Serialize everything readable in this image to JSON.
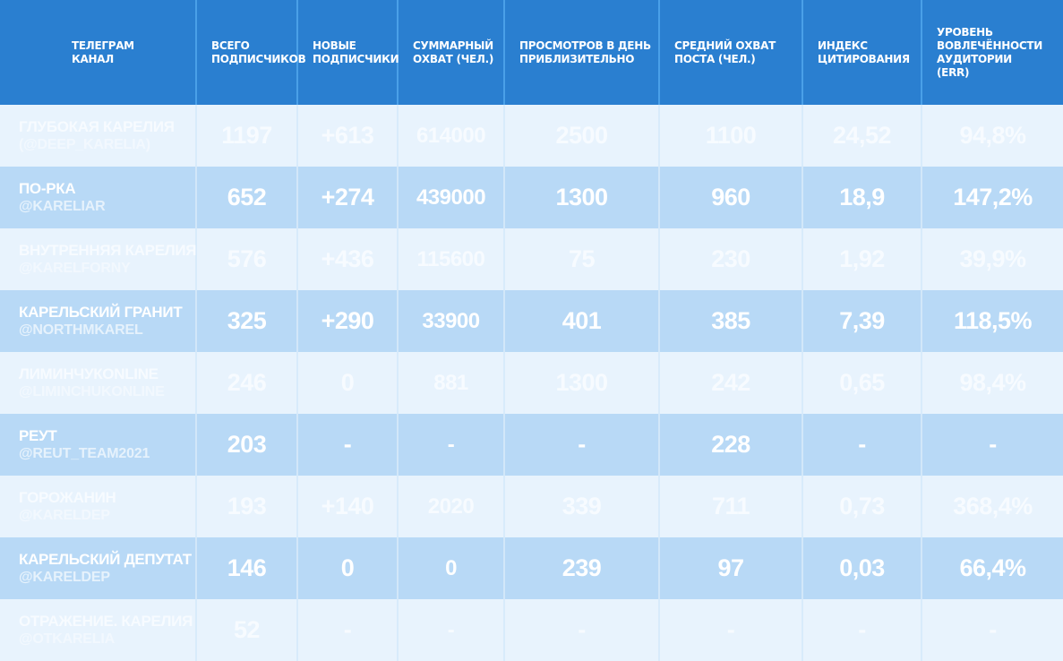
{
  "header": {
    "columns": [
      "Телеграм\nканал",
      "Всего\nподписчиков",
      "Новые\nподписчики",
      "Суммарный\nохват (чел.)",
      "Просмотров в день\nприблизительно",
      "Средний охват\nпоста (чел.)",
      "Индекс\nцитирования",
      "Уровень\nвовлечённости\nаудитории\n(ERR)"
    ]
  },
  "rows": [
    {
      "name": "Глубокая Карелия",
      "handle": "(@deep_karelia)",
      "subscribers": "1197",
      "new": "+613",
      "reach": "614000",
      "views_per_day": "2500",
      "avg_post_reach": "1100",
      "citation_index": "24,52",
      "err": "94,8%"
    },
    {
      "name": "По-рка",
      "handle": "@kareliar",
      "subscribers": "652",
      "new": "+274",
      "reach": "439000",
      "views_per_day": "1300",
      "avg_post_reach": "960",
      "citation_index": "18,9",
      "err": "147,2%"
    },
    {
      "name": "Внутренняя Карелия",
      "handle": "@karelforny",
      "subscribers": "576",
      "new": "+436",
      "reach": "115600",
      "views_per_day": "75",
      "avg_post_reach": "230",
      "citation_index": "1,92",
      "err": "39,9%"
    },
    {
      "name": "Карельский гранит",
      "handle": "@northmkarel",
      "subscribers": "325",
      "new": "+290",
      "reach": "33900",
      "views_per_day": "401",
      "avg_post_reach": "385",
      "citation_index": "7,39",
      "err": "118,5%"
    },
    {
      "name": "ЛиминчукOnline",
      "handle": "@liminchukonline",
      "subscribers": "246",
      "new": "0",
      "reach": "881",
      "views_per_day": "1300",
      "avg_post_reach": "242",
      "citation_index": "0,65",
      "err": "98,4%"
    },
    {
      "name": "Реут",
      "handle": "@reut_team2021",
      "subscribers": "203",
      "new": "-",
      "reach": "-",
      "views_per_day": "-",
      "avg_post_reach": "228",
      "citation_index": "-",
      "err": "-"
    },
    {
      "name": "Горожанин",
      "handle": "@kareldep",
      "subscribers": "193",
      "new": "+140",
      "reach": "2020",
      "views_per_day": "339",
      "avg_post_reach": "711",
      "citation_index": "0,73",
      "err": "368,4%"
    },
    {
      "name": "Карельский депутат",
      "handle": "@kareldep",
      "subscribers": "146",
      "new": "0",
      "reach": "0",
      "views_per_day": "239",
      "avg_post_reach": "97",
      "citation_index": "0,03",
      "err": "66,4%"
    },
    {
      "name": "Отражение. Карелия",
      "handle": "@otkarelia",
      "subscribers": "52",
      "new": "-",
      "reach": "-",
      "views_per_day": "-",
      "avg_post_reach": "-",
      "citation_index": "-",
      "err": "-"
    }
  ],
  "colors": {
    "header_bg": "#2a7fd0",
    "row_light": "#e8f3fd",
    "row_dark": "#b8d9f6"
  }
}
